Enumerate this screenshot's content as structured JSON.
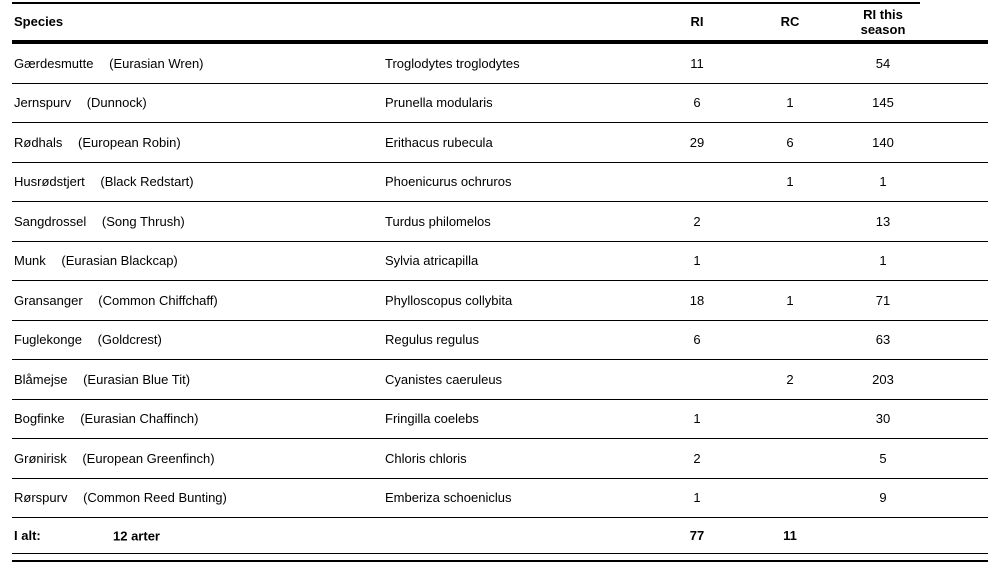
{
  "table": {
    "columns": {
      "species": "Species",
      "ri": "RI",
      "rc": "RC",
      "season": "RI this season"
    },
    "rows": [
      {
        "danish": "Gærdesmutte",
        "english": "(Eurasian Wren)",
        "scientific": "Troglodytes troglodytes",
        "ri": "11",
        "rc": "",
        "season": "54"
      },
      {
        "danish": "Jernspurv",
        "english": "(Dunnock)",
        "scientific": "Prunella modularis",
        "ri": "6",
        "rc": "1",
        "season": "145"
      },
      {
        "danish": "Rødhals",
        "english": "(European Robin)",
        "scientific": "Erithacus rubecula",
        "ri": "29",
        "rc": "6",
        "season": "140"
      },
      {
        "danish": "Husrødstjert",
        "english": "(Black Redstart)",
        "scientific": "Phoenicurus ochruros",
        "ri": "",
        "rc": "1",
        "season": "1"
      },
      {
        "danish": "Sangdrossel",
        "english": "(Song Thrush)",
        "scientific": "Turdus philomelos",
        "ri": "2",
        "rc": "",
        "season": "13"
      },
      {
        "danish": "Munk",
        "english": "(Eurasian Blackcap)",
        "scientific": "Sylvia atricapilla",
        "ri": "1",
        "rc": "",
        "season": "1"
      },
      {
        "danish": "Gransanger",
        "english": "(Common Chiffchaff)",
        "scientific": "Phylloscopus collybita",
        "ri": "18",
        "rc": "1",
        "season": "71"
      },
      {
        "danish": "Fuglekonge",
        "english": "(Goldcrest)",
        "scientific": "Regulus regulus",
        "ri": "6",
        "rc": "",
        "season": "63"
      },
      {
        "danish": "Blåmejse",
        "english": "(Eurasian Blue Tit)",
        "scientific": "Cyanistes caeruleus",
        "ri": "",
        "rc": "2",
        "season": "203"
      },
      {
        "danish": "Bogfinke",
        "english": "(Eurasian Chaffinch)",
        "scientific": "Fringilla coelebs",
        "ri": "1",
        "rc": "",
        "season": "30"
      },
      {
        "danish": "Grønirisk",
        "english": "(European Greenfinch)",
        "scientific": "Chloris chloris",
        "ri": "2",
        "rc": "",
        "season": "5"
      },
      {
        "danish": "Rørspurv",
        "english": "(Common Reed Bunting)",
        "scientific": "Emberiza schoeniclus",
        "ri": "1",
        "rc": "",
        "season": "9"
      }
    ],
    "footer": {
      "label": "I alt:",
      "count": "12 arter",
      "ri_total": "77",
      "rc_total": "11",
      "season_total": ""
    }
  }
}
